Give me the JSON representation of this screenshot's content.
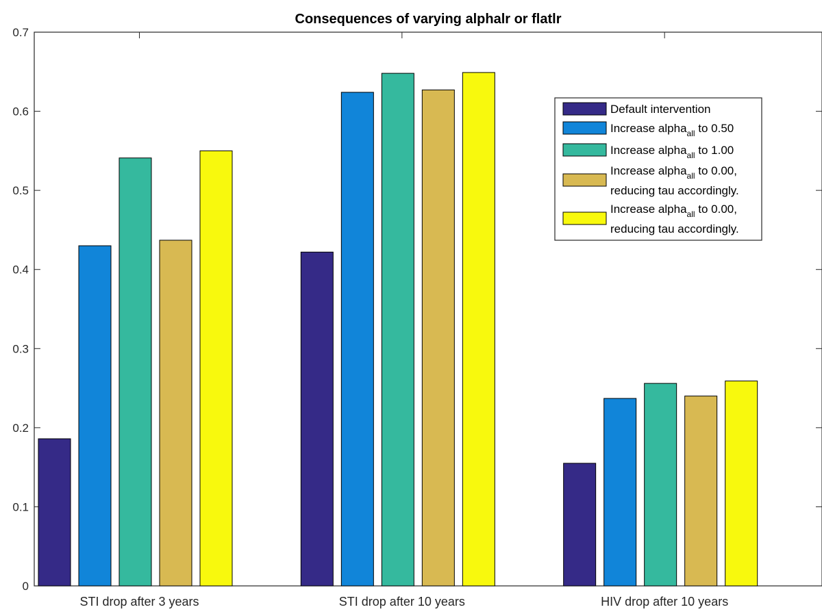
{
  "chart_data": {
    "type": "bar",
    "title": "Consequences of varying alphalr or flatlr",
    "xlabel": "",
    "ylabel": "",
    "ylim": [
      0,
      0.7
    ],
    "yticks": [
      "0",
      "0.1",
      "0.2",
      "0.3",
      "0.4",
      "0.5",
      "0.6",
      "0.7"
    ],
    "categories": [
      "STI drop after 3 years",
      "STI drop after 10 years",
      "HIV drop after 10 years"
    ],
    "legend_position": "top-right",
    "series": [
      {
        "legend": {
          "main": "Default intervention",
          "sub": "",
          "suffix": "",
          "line2": ""
        },
        "color": "#352A87",
        "values": [
          0.186,
          0.422,
          0.155
        ]
      },
      {
        "legend": {
          "main": "Increase alpha",
          "sub": "all",
          "suffix": " to 0.50",
          "line2": ""
        },
        "color": "#1185D9",
        "values": [
          0.43,
          0.624,
          0.237
        ]
      },
      {
        "legend": {
          "main": "Increase alpha",
          "sub": "all",
          "suffix": " to 1.00",
          "line2": ""
        },
        "color": "#35B99E",
        "values": [
          0.541,
          0.648,
          0.256
        ]
      },
      {
        "legend": {
          "main": "Increase alpha",
          "sub": "all",
          "suffix": " to 0.00,",
          "line2": "reducing tau accordingly."
        },
        "color": "#D8B952",
        "values": [
          0.437,
          0.627,
          0.24
        ]
      },
      {
        "legend": {
          "main": "Increase alpha",
          "sub": "all",
          "suffix": " to 0.00,",
          "line2": "reducing tau accordingly."
        },
        "color": "#F8F90D",
        "values": [
          0.55,
          0.649,
          0.259
        ]
      }
    ]
  }
}
